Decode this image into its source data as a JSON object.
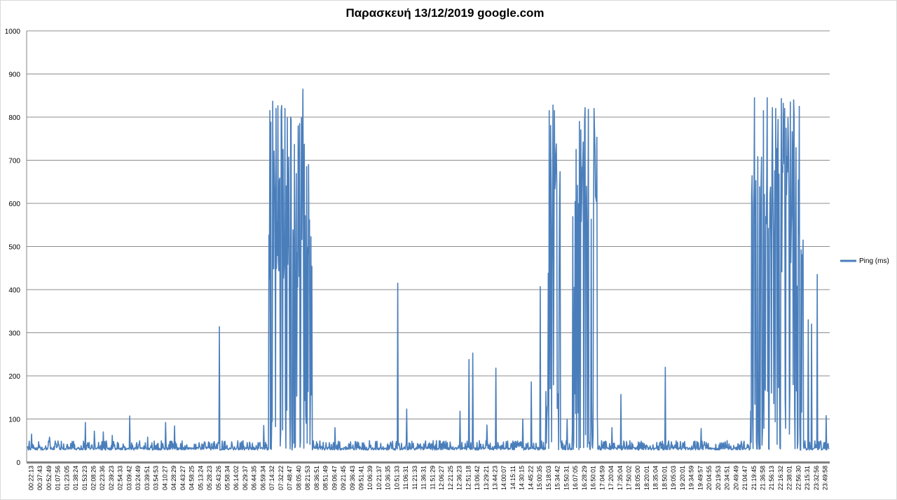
{
  "chart_data": {
    "type": "line",
    "title": "Παρασκευή 13/12/2019 google.com",
    "xlabel": "",
    "ylabel": "",
    "ylim": [
      0,
      1000
    ],
    "y_ticks": [
      0,
      100,
      200,
      300,
      400,
      500,
      600,
      700,
      800,
      900,
      1000
    ],
    "grid": "horizontal",
    "legend_position": "right",
    "series_color": "#4a7ebb",
    "x_tick_labels": [
      "00:22:13",
      "00:37:43",
      "00:52:49",
      "01:07:56",
      "01:23:05",
      "01:38:24",
      "01:53:23",
      "02:08:26",
      "02:23:36",
      "02:39:23",
      "02:54:33",
      "03:09:42",
      "03:24:49",
      "03:39:51",
      "03:54:53",
      "04:10:27",
      "04:28:29",
      "04:43:27",
      "04:58:25",
      "05:13:24",
      "05:28:23",
      "05:43:26",
      "05:58:34",
      "06:14:02",
      "06:29:37",
      "06:44:35",
      "06:59:34",
      "07:14:32",
      "07:32:22",
      "07:48:47",
      "08:05:40",
      "08:21:53",
      "08:36:51",
      "08:51:49",
      "09:06:47",
      "09:21:45",
      "09:36:43",
      "09:51:41",
      "10:06:39",
      "10:21:37",
      "10:36:35",
      "10:51:33",
      "11:06:31",
      "11:21:33",
      "11:36:31",
      "11:51:29",
      "12:06:27",
      "12:21:25",
      "12:36:23",
      "12:51:18",
      "13:06:42",
      "13:29:21",
      "13:44:23",
      "14:00:07",
      "14:15:11",
      "14:30:15",
      "14:45:22",
      "15:00:35",
      "15:18:03",
      "15:34:42",
      "15:50:31",
      "16:07:05",
      "16:28:29",
      "16:50:01",
      "17:04:59",
      "17:20:04",
      "17:35:04",
      "17:50:02",
      "18:05:00",
      "18:20:01",
      "18:35:04",
      "18:50:01",
      "19:05:03",
      "19:20:01",
      "19:34:59",
      "19:49:57",
      "20:04:55",
      "20:19:53",
      "20:34:51",
      "20:49:49",
      "21:04:47",
      "21:19:45",
      "21:36:58",
      "21:56:13",
      "22:16:32",
      "22:38:01",
      "22:56:30",
      "23:15:31",
      "23:32:56",
      "23:49:58"
    ],
    "series": [
      {
        "name": "Ping (ms)",
        "baseline_range_ms": [
          28,
          50
        ],
        "spikes": [
          {
            "x": "00:22:13",
            "value": 65
          },
          {
            "x": "00:52:49",
            "value": 58
          },
          {
            "x": "01:53:23",
            "value": 92
          },
          {
            "x": "02:08:26",
            "value": 72
          },
          {
            "x": "02:23:36",
            "value": 70
          },
          {
            "x": "02:39:23",
            "value": 62
          },
          {
            "x": "03:09:42",
            "value": 107
          },
          {
            "x": "03:39:51",
            "value": 58
          },
          {
            "x": "04:10:27",
            "value": 92
          },
          {
            "x": "04:28:29",
            "value": 84
          },
          {
            "x": "05:43:26",
            "value": 314
          },
          {
            "x": "06:59:34",
            "value": 85
          },
          {
            "x": "07:14:32",
            "value": 837
          },
          {
            "x": "07:14:32",
            "value": 820
          },
          {
            "x": "07:32:22",
            "value": 827
          },
          {
            "x": "07:32:22",
            "value": 820
          },
          {
            "x": "07:48:47",
            "value": 800
          },
          {
            "x": "08:05:40",
            "value": 785
          },
          {
            "x": "08:05:40",
            "value": 865
          },
          {
            "x": "08:21:53",
            "value": 690
          },
          {
            "x": "09:06:47",
            "value": 80
          },
          {
            "x": "10:51:33",
            "value": 415
          },
          {
            "x": "11:06:31",
            "value": 123
          },
          {
            "x": "12:36:23",
            "value": 118
          },
          {
            "x": "12:51:18",
            "value": 238
          },
          {
            "x": "12:51:18",
            "value": 253
          },
          {
            "x": "13:29:21",
            "value": 86
          },
          {
            "x": "13:44:23",
            "value": 218
          },
          {
            "x": "14:30:15",
            "value": 100
          },
          {
            "x": "14:45:22",
            "value": 186
          },
          {
            "x": "15:00:35",
            "value": 407
          },
          {
            "x": "15:18:03",
            "value": 815
          },
          {
            "x": "15:18:03",
            "value": 828
          },
          {
            "x": "15:18:03",
            "value": 738
          },
          {
            "x": "15:34:42",
            "value": 155
          },
          {
            "x": "15:50:31",
            "value": 100
          },
          {
            "x": "16:07:05",
            "value": 725
          },
          {
            "x": "16:07:05",
            "value": 790
          },
          {
            "x": "16:28:29",
            "value": 822
          },
          {
            "x": "16:28:29",
            "value": 818
          },
          {
            "x": "16:50:01",
            "value": 820
          },
          {
            "x": "16:50:01",
            "value": 108
          },
          {
            "x": "17:20:04",
            "value": 80
          },
          {
            "x": "17:35:04",
            "value": 157
          },
          {
            "x": "18:50:01",
            "value": 220
          },
          {
            "x": "19:49:57",
            "value": 78
          },
          {
            "x": "21:19:45",
            "value": 845
          },
          {
            "x": "21:36:58",
            "value": 815
          },
          {
            "x": "21:36:58",
            "value": 845
          },
          {
            "x": "21:56:13",
            "value": 822
          },
          {
            "x": "21:56:13",
            "value": 820
          },
          {
            "x": "22:16:32",
            "value": 843
          },
          {
            "x": "22:16:32",
            "value": 820
          },
          {
            "x": "22:38:01",
            "value": 835
          },
          {
            "x": "22:38:01",
            "value": 840
          },
          {
            "x": "22:56:30",
            "value": 825
          },
          {
            "x": "23:15:31",
            "value": 330
          },
          {
            "x": "23:15:31",
            "value": 320
          },
          {
            "x": "23:32:56",
            "value": 435
          },
          {
            "x": "23:49:58",
            "value": 108
          }
        ]
      }
    ]
  }
}
